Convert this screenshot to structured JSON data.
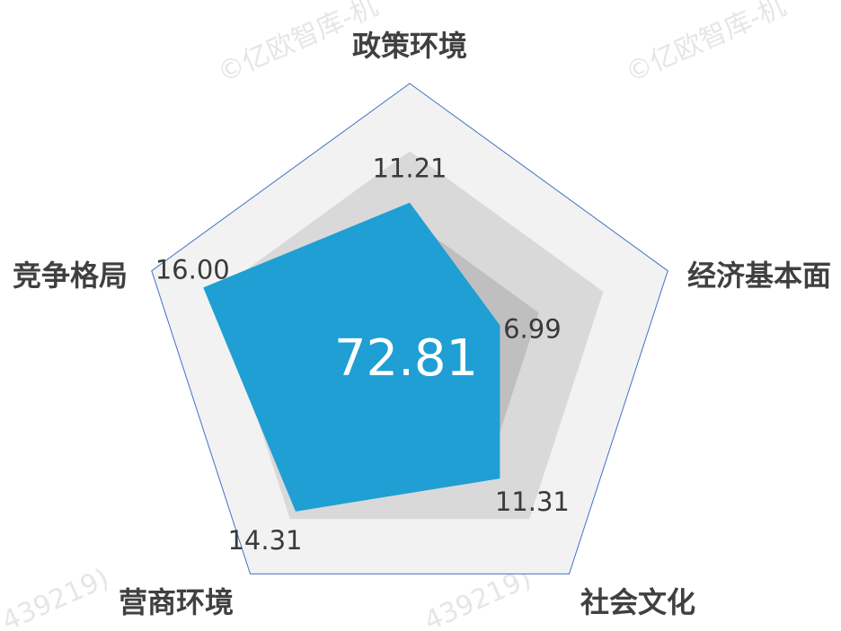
{
  "chart_data": {
    "type": "radar",
    "categories": [
      "政策环境",
      "经济基本面",
      "社会文化",
      "营商环境",
      "竞争格局"
    ],
    "series": [
      {
        "values": [
          11.21,
          6.99,
          11.31,
          14.31,
          16.0
        ]
      }
    ],
    "value_labels": [
      "11.21",
      "6.99",
      "11.31",
      "14.31",
      "16.00"
    ],
    "max_value": 20,
    "reference_levels": [
      15,
      10
    ],
    "center_total": "72.81",
    "colors": {
      "series_fill": "#1F9FD3",
      "outer_band": "#F2F2F2",
      "middle_band": "#D9D9D9",
      "inner_band": "#BFBFBF",
      "outline": "#4472C4"
    }
  },
  "watermarks": [
    "©亿欧智库-机",
    "©亿欧智库-机",
    "439219)",
    "439219)"
  ]
}
